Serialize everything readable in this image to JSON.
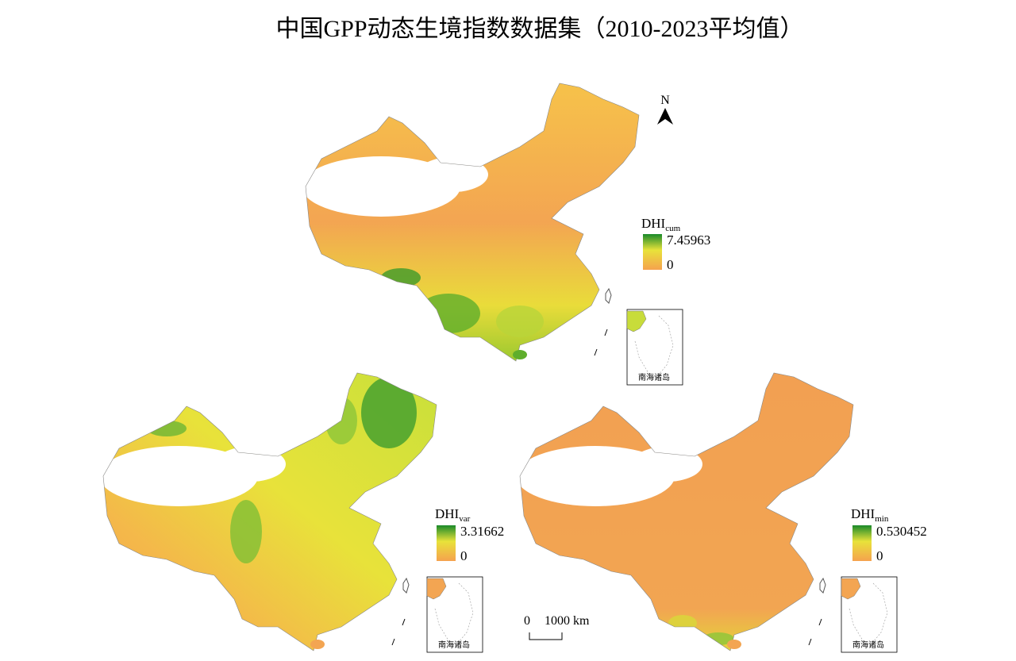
{
  "title": "中国GPP动态生境指数数据集（2010-2023平均值）",
  "north": "N",
  "maps": [
    {
      "legend": {
        "name": "DHI",
        "sub": "cum",
        "max": 7.45963,
        "min": 0
      }
    },
    {
      "legend": {
        "name": "DHI",
        "sub": "var",
        "max": 3.31662,
        "min": 0
      }
    },
    {
      "legend": {
        "name": "DHI",
        "sub": "min",
        "max": 0.530452,
        "min": 0
      }
    }
  ],
  "inset_label": "南海诸岛",
  "scale_bar": {
    "start": 0,
    "end": "1000 km"
  }
}
